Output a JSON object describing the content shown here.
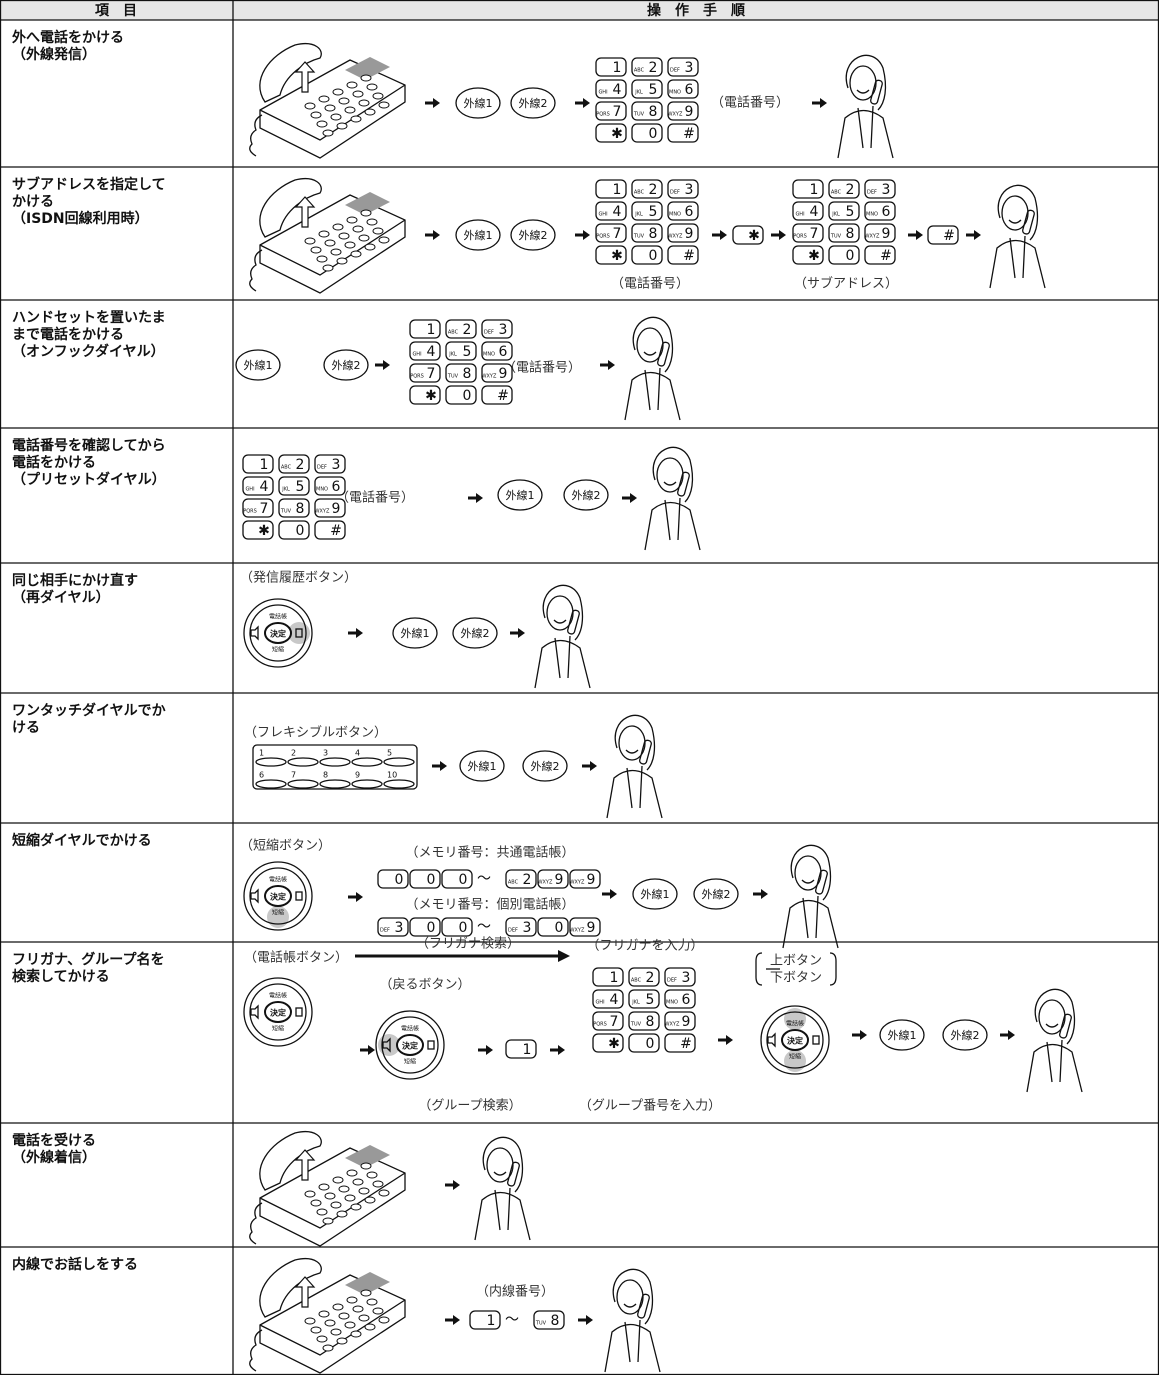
{
  "header": {
    "item": "項　目",
    "procedure": "操　作　手　順"
  },
  "keys": [
    "1",
    "2",
    "3",
    "4",
    "5",
    "6",
    "7",
    "8",
    "9",
    "✱",
    "0",
    "#"
  ],
  "key_letters": [
    "",
    "ABC",
    "DEF",
    "GHI",
    "JKL",
    "MNO",
    "PQRS",
    "TUV",
    "WXYZ",
    "",
    "",
    ""
  ],
  "buttons": {
    "line1": "外線1",
    "line2": "外線2"
  },
  "pad": {
    "top": "電話帳",
    "center": "決定",
    "bottom": "短縮"
  },
  "tilde": "～",
  "flex_numbers": [
    "1",
    "2",
    "3",
    "4",
    "5",
    "6",
    "7",
    "8",
    "9",
    "10"
  ],
  "rows": [
    {
      "item": [
        "外へ電話をかける",
        "（外線発信）"
      ],
      "notes": [
        "（電話番号）"
      ]
    },
    {
      "item": [
        "サブアドレスを指定して",
        "かける",
        "（ISDN回線利用時）"
      ],
      "notes": [
        "（電話番号）",
        "（サブアドレス）"
      ]
    },
    {
      "item": [
        "ハンドセットを置いたま",
        "まで電話をかける",
        "（オンフックダイヤル）"
      ],
      "notes": [
        "（電話番号）"
      ]
    },
    {
      "item": [
        "電話番号を確認してから",
        "電話をかける",
        "（プリセットダイヤル）"
      ],
      "notes": [
        "（電話番号）"
      ]
    },
    {
      "item": [
        "同じ相手にかけ直す",
        "（再ダイヤル）"
      ],
      "notes": [
        "（発信履歴ボタン）"
      ]
    },
    {
      "item": [
        "ワンタッチダイヤルでか",
        "ける"
      ],
      "notes": [
        "（フレキシブルボタン）"
      ]
    },
    {
      "item": [
        "短縮ダイヤルでかける"
      ],
      "notes": [
        "（短縮ボタン）",
        "（メモリ番号：共通電話帳）",
        "（メモリ番号：個別電話帳）"
      ]
    },
    {
      "item": [
        "フリガナ、グループ名を",
        "検索してかける"
      ],
      "notes": [
        "（電話帳ボタン）",
        "（フリガナ検索）",
        "（戻るボタン）",
        "（グループ検索）",
        "（フリガナを入力）",
        "（グループ番号を入力）",
        "上ボタン",
        "下ボタン"
      ]
    },
    {
      "item": [
        "電話を受ける",
        "（外線着信）"
      ]
    },
    {
      "item": [
        "内線でお話しをする"
      ],
      "notes": [
        "（内線番号）"
      ]
    }
  ]
}
